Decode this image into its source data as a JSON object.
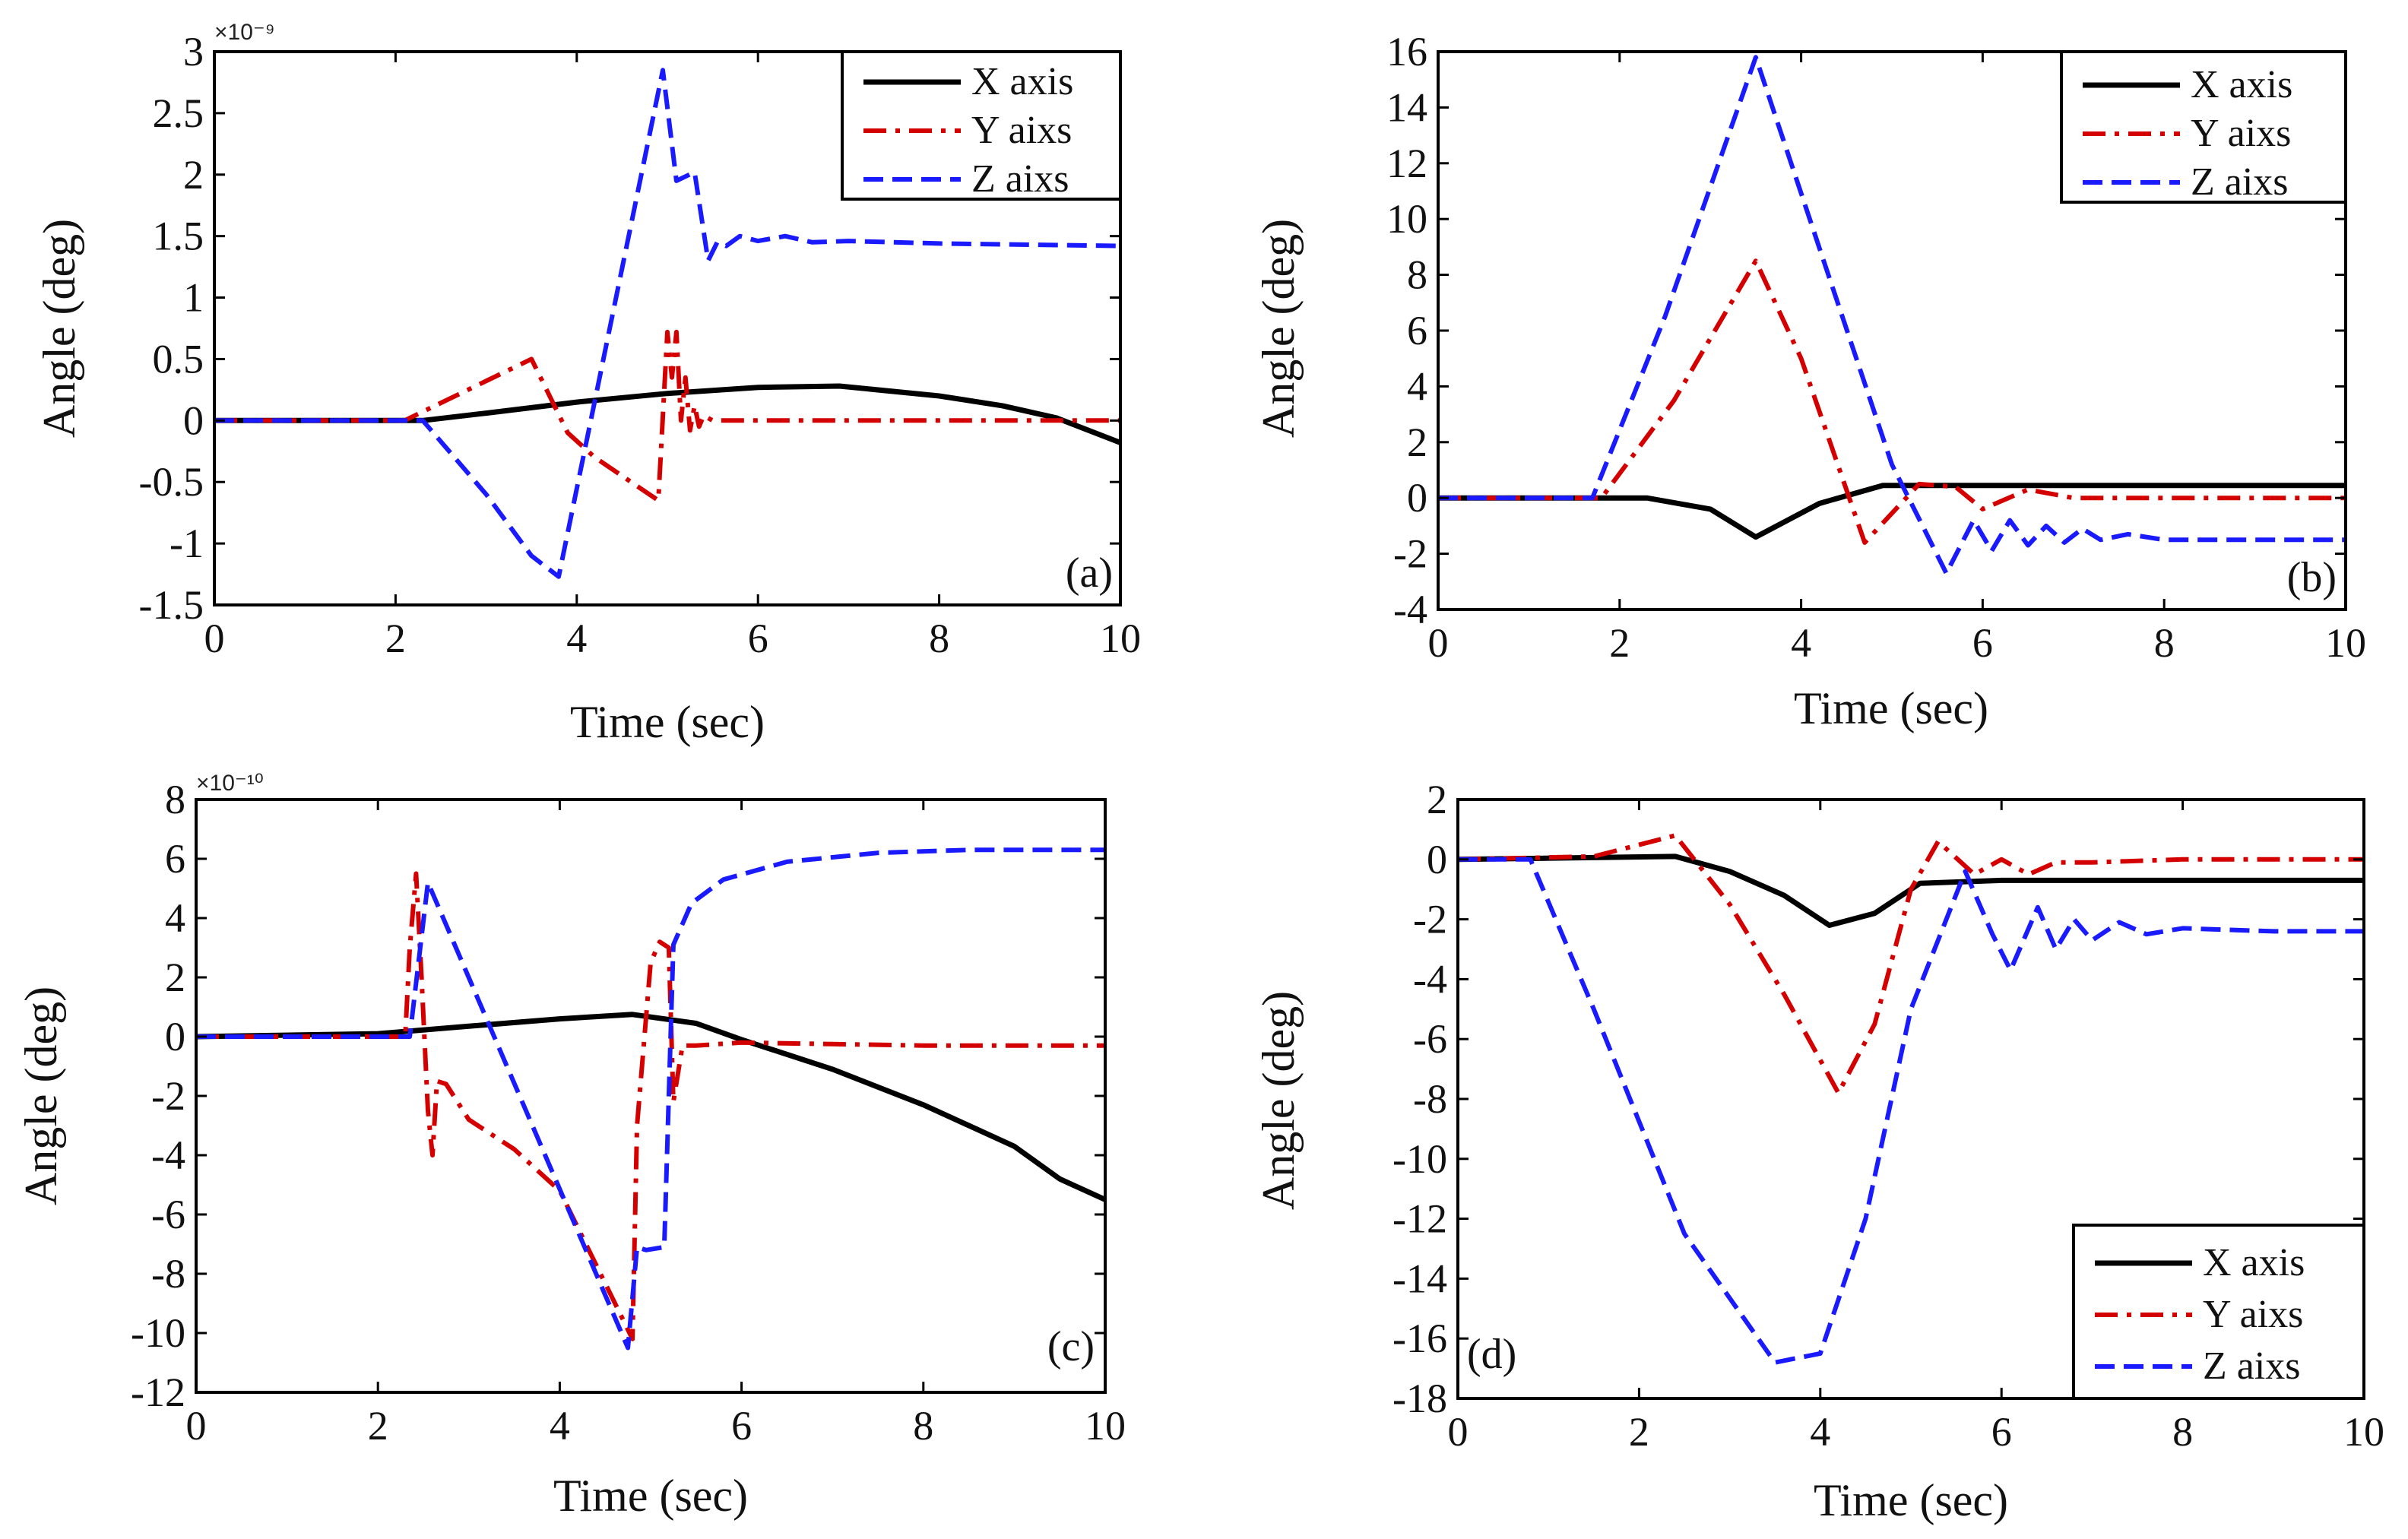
{
  "chart_data": [
    {
      "panel_label": "(a)",
      "type": "line",
      "xlabel": "Time (sec)",
      "ylabel": "Angle (deg)",
      "exponent_label": "×10⁻⁹",
      "xlim": [
        0,
        10
      ],
      "ylim": [
        -1.5,
        3
      ],
      "xticks": [
        0,
        2,
        4,
        6,
        8,
        10
      ],
      "yticks": [
        -1.5,
        -1,
        -0.5,
        0,
        0.5,
        1,
        1.5,
        2,
        2.5,
        3
      ],
      "ytick_labels": [
        "-1.5",
        "-1",
        "-0.5",
        "0",
        "0.5",
        "1",
        "1.5",
        "2",
        "2.5",
        "3"
      ],
      "legend": {
        "position": "top-right",
        "entries": [
          "X axis",
          "Y aixs",
          "Z aixs"
        ]
      },
      "series": [
        {
          "name": "X axis",
          "color": "#000000",
          "style": "solid",
          "x": [
            0,
            2,
            2.3,
            3,
            4,
            5,
            6,
            6.9,
            8,
            8.7,
            9.3,
            10
          ],
          "y": [
            0,
            0,
            0,
            0.06,
            0.15,
            0.22,
            0.27,
            0.28,
            0.2,
            0.12,
            0.02,
            -0.18
          ]
        },
        {
          "name": "Y aixs",
          "color": "#d40000",
          "style": "dashdot",
          "x": [
            0,
            2.1,
            3.5,
            3.9,
            4.2,
            4.9,
            5.0,
            5.05,
            5.1,
            5.15,
            5.2,
            5.25,
            5.3,
            5.35,
            5.4,
            5.5,
            6,
            7,
            8,
            9,
            10
          ],
          "y": [
            0,
            0,
            0.5,
            -0.1,
            -0.3,
            -0.65,
            0.72,
            0.35,
            0.72,
            0.0,
            0.35,
            -0.08,
            0.12,
            -0.05,
            0.04,
            0,
            0,
            0,
            0,
            0,
            0
          ]
        },
        {
          "name": "Z aixs",
          "color": "#1a1aff",
          "style": "dashed",
          "x": [
            0,
            2.3,
            3.0,
            3.5,
            3.8,
            4.95,
            5.1,
            5.3,
            5.45,
            5.55,
            5.65,
            5.8,
            6.0,
            6.3,
            6.6,
            7,
            8,
            9,
            10
          ],
          "y": [
            0,
            0,
            -0.6,
            -1.1,
            -1.27,
            2.85,
            1.95,
            2.02,
            1.3,
            1.45,
            1.42,
            1.5,
            1.46,
            1.5,
            1.45,
            1.46,
            1.44,
            1.43,
            1.42
          ]
        }
      ]
    },
    {
      "panel_label": "(b)",
      "type": "line",
      "xlabel": "Time (sec)",
      "ylabel": "Angle (deg)",
      "exponent_label": "",
      "xlim": [
        0,
        10
      ],
      "ylim": [
        -4,
        16
      ],
      "xticks": [
        0,
        2,
        4,
        6,
        8,
        10
      ],
      "yticks": [
        -4,
        -2,
        0,
        2,
        4,
        6,
        8,
        10,
        12,
        14,
        16
      ],
      "ytick_labels": [
        "-4",
        "-2",
        "0",
        "2",
        "4",
        "6",
        "8",
        "10",
        "12",
        "14",
        "16"
      ],
      "legend": {
        "position": "top-right",
        "entries": [
          "X axis",
          "Y aixs",
          "Z aixs"
        ]
      },
      "series": [
        {
          "name": "X axis",
          "color": "#000000",
          "style": "solid",
          "x": [
            0,
            2.3,
            3.0,
            3.5,
            4.2,
            4.9,
            6,
            8,
            10
          ],
          "y": [
            0,
            0,
            -0.4,
            -1.4,
            -0.2,
            0.45,
            0.45,
            0.45,
            0.45
          ]
        },
        {
          "name": "Y aixs",
          "color": "#d40000",
          "style": "dashdot",
          "x": [
            0,
            1.8,
            2.6,
            3.5,
            4.0,
            4.7,
            5.3,
            5.7,
            6.0,
            6.5,
            7,
            8,
            10
          ],
          "y": [
            0,
            0,
            3.5,
            8.5,
            5,
            -1.6,
            0.5,
            0.4,
            -0.4,
            0.3,
            0,
            0,
            0
          ]
        },
        {
          "name": "Z aixs",
          "color": "#1a1aff",
          "style": "dashed",
          "x": [
            0,
            1.7,
            2.5,
            3.5,
            4.3,
            5.0,
            5.6,
            5.9,
            6.1,
            6.3,
            6.5,
            6.7,
            6.9,
            7.1,
            7.3,
            7.6,
            8,
            9,
            10
          ],
          "y": [
            0,
            0,
            6.5,
            15.8,
            8,
            1.2,
            -2.7,
            -0.8,
            -1.9,
            -0.8,
            -1.7,
            -1.0,
            -1.6,
            -1.1,
            -1.5,
            -1.3,
            -1.5,
            -1.5,
            -1.5
          ]
        }
      ]
    },
    {
      "panel_label": "(c)",
      "type": "line",
      "xlabel": "Time (sec)",
      "ylabel": "Angle (deg)",
      "exponent_label": "×10⁻¹⁰",
      "xlim": [
        0,
        10
      ],
      "ylim": [
        -12,
        8
      ],
      "xticks": [
        0,
        2,
        4,
        6,
        8,
        10
      ],
      "yticks": [
        -12,
        -10,
        -8,
        -6,
        -4,
        -2,
        0,
        2,
        4,
        6,
        8
      ],
      "ytick_labels": [
        "-12",
        "-10",
        "-8",
        "-6",
        "-4",
        "-2",
        "0",
        "2",
        "4",
        "6",
        "8"
      ],
      "legend": {
        "position": "none",
        "entries": []
      },
      "series": [
        {
          "name": "X axis",
          "color": "#000000",
          "style": "solid",
          "x": [
            0,
            2,
            3,
            4,
            4.8,
            5.5,
            6,
            7,
            8,
            9,
            9.5,
            10
          ],
          "y": [
            0,
            0.1,
            0.35,
            0.6,
            0.75,
            0.45,
            -0.1,
            -1.1,
            -2.3,
            -3.7,
            -4.8,
            -5.5
          ]
        },
        {
          "name": "Y aixs",
          "color": "#d40000",
          "style": "dashdot",
          "x": [
            0,
            2.3,
            2.35,
            2.42,
            2.48,
            2.55,
            2.6,
            2.65,
            2.75,
            3.0,
            3.5,
            4.0,
            4.8,
            4.85,
            5.0,
            5.1,
            5.2,
            5.25,
            5.35,
            5.5,
            6,
            7,
            8,
            9,
            10
          ],
          "y": [
            0,
            0,
            3,
            5.5,
            2,
            -2.5,
            -4,
            -1.5,
            -1.6,
            -2.8,
            -3.8,
            -5.2,
            -10.2,
            -3,
            2.5,
            3.2,
            3.0,
            -2.2,
            -0.3,
            -0.3,
            -0.2,
            -0.25,
            -0.3,
            -0.3,
            -0.3
          ]
        },
        {
          "name": "Z aixs",
          "color": "#1a1aff",
          "style": "dashed",
          "x": [
            0,
            2.35,
            2.55,
            4.75,
            4.85,
            4.95,
            5.15,
            5.25,
            5.45,
            5.8,
            6.5,
            7.5,
            8.5,
            10
          ],
          "y": [
            0,
            0,
            5.2,
            -10.5,
            -7.1,
            -7.2,
            -7.1,
            3.1,
            4.5,
            5.3,
            5.9,
            6.2,
            6.3,
            6.3
          ]
        }
      ]
    },
    {
      "panel_label": "(d)",
      "type": "line",
      "xlabel": "Time (sec)",
      "ylabel": "Angle (deg)",
      "exponent_label": "",
      "xlim": [
        0,
        10
      ],
      "ylim": [
        -18,
        2
      ],
      "xticks": [
        0,
        2,
        4,
        6,
        8,
        10
      ],
      "yticks": [
        -18,
        -16,
        -14,
        -12,
        -10,
        -8,
        -6,
        -4,
        -2,
        0,
        2
      ],
      "ytick_labels": [
        "-18",
        "-16",
        "-14",
        "-12",
        "-10",
        "-8",
        "-6",
        "-4",
        "-2",
        "0",
        "2"
      ],
      "legend": {
        "position": "bottom-right",
        "entries": [
          "X axis",
          "Y aixs",
          "Z aixs"
        ]
      },
      "series": [
        {
          "name": "X axis",
          "color": "#000000",
          "style": "solid",
          "x": [
            0,
            2.4,
            3.0,
            3.6,
            4.1,
            4.6,
            5.1,
            6,
            8,
            10
          ],
          "y": [
            0,
            0.1,
            -0.4,
            -1.2,
            -2.2,
            -1.8,
            -0.8,
            -0.7,
            -0.7,
            -0.7
          ]
        },
        {
          "name": "Y aixs",
          "color": "#d40000",
          "style": "dashdot",
          "x": [
            0,
            1.5,
            2.4,
            3.0,
            3.6,
            4.2,
            4.6,
            5.0,
            5.3,
            5.7,
            6.0,
            6.3,
            6.6,
            7,
            8,
            10
          ],
          "y": [
            0,
            0.1,
            0.8,
            -1.5,
            -4.5,
            -7.8,
            -5.5,
            -1.0,
            0.6,
            -0.5,
            0.0,
            -0.5,
            -0.1,
            -0.1,
            0,
            0
          ]
        },
        {
          "name": "Z aixs",
          "color": "#1a1aff",
          "style": "dashed",
          "x": [
            0,
            0.8,
            1.5,
            2.5,
            3.5,
            4.0,
            4.5,
            5.0,
            5.6,
            5.9,
            6.1,
            6.4,
            6.6,
            6.8,
            7.0,
            7.3,
            7.6,
            8,
            9,
            10
          ],
          "y": [
            0,
            0,
            -5,
            -12.5,
            -16.8,
            -16.5,
            -12,
            -5,
            -0.4,
            -2.5,
            -3.7,
            -1.6,
            -3.0,
            -2.0,
            -2.7,
            -2.1,
            -2.5,
            -2.3,
            -2.4,
            -2.4
          ]
        }
      ]
    }
  ]
}
